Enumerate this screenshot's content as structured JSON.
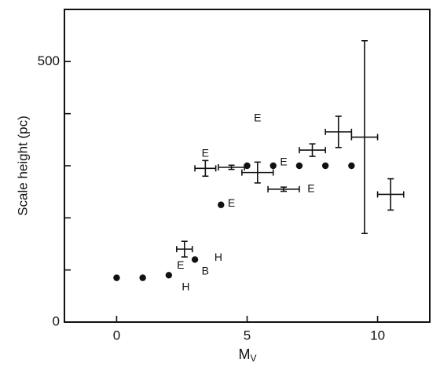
{
  "chart_data": {
    "type": "scatter",
    "xlabel": "M",
    "xlabel_sub": "V",
    "ylabel": "Scale height (pc)",
    "xlim": [
      -2,
      12
    ],
    "ylim": [
      0,
      600
    ],
    "xticks": [
      0,
      5,
      10
    ],
    "yticks": [
      0,
      500
    ],
    "yminor_ticks": [
      100,
      200,
      300,
      400
    ],
    "color": "#111111",
    "points": {
      "x": [
        0,
        1,
        2,
        3,
        4,
        5,
        6,
        7,
        8,
        9
      ],
      "y": [
        85,
        85,
        90,
        120,
        225,
        300,
        300,
        300,
        300,
        300
      ]
    },
    "errorbars": {
      "x": [
        2.6,
        3.4,
        4.4,
        5.4,
        6.4,
        7.5,
        8.5,
        9.5,
        10.5
      ],
      "y": [
        140,
        295,
        297,
        287,
        255,
        330,
        365,
        355,
        245
      ],
      "xerr": [
        0.3,
        0.4,
        0.5,
        0.6,
        0.6,
        0.5,
        0.5,
        0.5,
        0.5
      ],
      "yerr": [
        15,
        15,
        4,
        20,
        4,
        12,
        30,
        185,
        30
      ]
    },
    "annotations": [
      {
        "text": "E",
        "x": 5.4,
        "y": 391
      },
      {
        "text": "E",
        "x": 3.4,
        "y": 323
      },
      {
        "text": "E",
        "x": 6.4,
        "y": 306
      },
      {
        "text": "E",
        "x": 4.4,
        "y": 227
      },
      {
        "text": "E",
        "x": 7.45,
        "y": 255
      },
      {
        "text": "E",
        "x": 2.45,
        "y": 108
      },
      {
        "text": "B",
        "x": 3.4,
        "y": 97
      },
      {
        "text": "H",
        "x": 3.9,
        "y": 123
      },
      {
        "text": "H",
        "x": 2.65,
        "y": 67
      }
    ]
  }
}
